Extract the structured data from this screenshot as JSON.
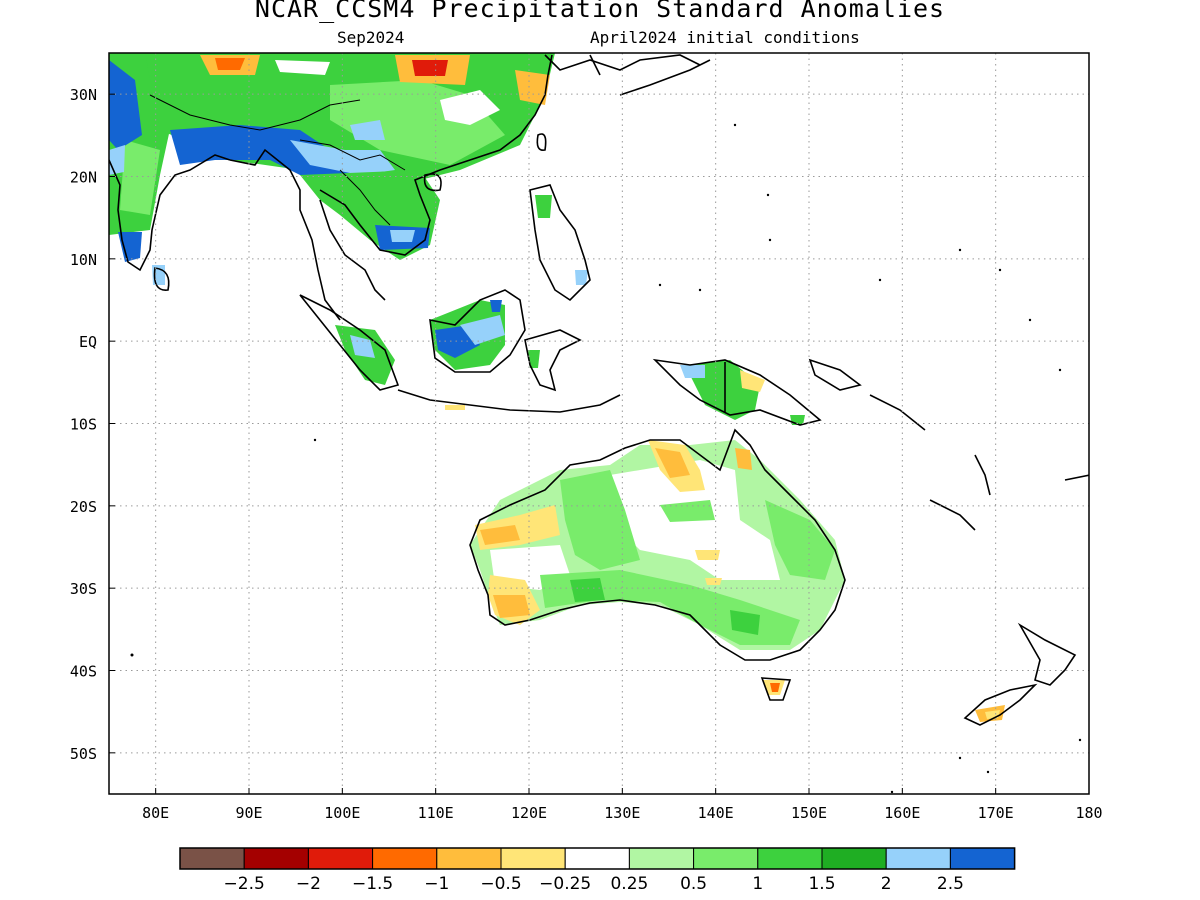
{
  "title": "NCAR_CCSM4 Precipitation Standard Anomalies",
  "subtitle_left": "Sep2024",
  "subtitle_right": "April2024 initial conditions",
  "map": {
    "lon_range": [
      75,
      180
    ],
    "lat_range": [
      -55,
      35
    ],
    "lon_ticks": [
      {
        "value": 80,
        "label": "80E"
      },
      {
        "value": 90,
        "label": "90E"
      },
      {
        "value": 100,
        "label": "100E"
      },
      {
        "value": 110,
        "label": "110E"
      },
      {
        "value": 120,
        "label": "120E"
      },
      {
        "value": 130,
        "label": "130E"
      },
      {
        "value": 140,
        "label": "140E"
      },
      {
        "value": 150,
        "label": "150E"
      },
      {
        "value": 160,
        "label": "160E"
      },
      {
        "value": 170,
        "label": "170E"
      },
      {
        "value": 180,
        "label": "180"
      }
    ],
    "lat_ticks": [
      {
        "value": 30,
        "label": "30N"
      },
      {
        "value": 20,
        "label": "20N"
      },
      {
        "value": 10,
        "label": "10N"
      },
      {
        "value": 0,
        "label": "EQ"
      },
      {
        "value": -10,
        "label": "10S"
      },
      {
        "value": -20,
        "label": "20S"
      },
      {
        "value": -30,
        "label": "30S"
      },
      {
        "value": -40,
        "label": "40S"
      },
      {
        "value": -50,
        "label": "50S"
      }
    ],
    "grid": "dotted"
  },
  "colorbar": {
    "colors": [
      "#7a5247",
      "#a40000",
      "#e01b0a",
      "#ff6a00",
      "#ffbd3c",
      "#ffe577",
      "#ffffff",
      "#b1f6a3",
      "#79ec6b",
      "#3dd13e",
      "#1fae23",
      "#96d1fa",
      "#1464d2"
    ],
    "labels": [
      "−2.5",
      "−2",
      "−1.5",
      "−1",
      "−0.5",
      "−0.25",
      "0.25",
      "0.5",
      "1",
      "1.5",
      "2",
      "2.5"
    ]
  },
  "colors": {
    "wet_light": "#b1f6a3",
    "wet_mid": "#79ec6b",
    "wet_strong": "#3dd13e",
    "wet_vstrong": "#1fae23",
    "wet_lightblue": "#96d1fa",
    "wet_blue": "#1464d2",
    "dry_light": "#ffe577",
    "dry_mid": "#ffbd3c",
    "dry_orange": "#ff6a00",
    "dry_red": "#e01b0a"
  }
}
